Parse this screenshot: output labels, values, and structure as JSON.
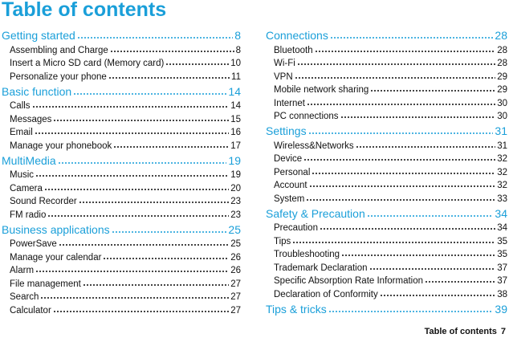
{
  "title": "Table of contents",
  "columns": [
    {
      "sections": [
        {
          "title": "Getting started",
          "page": 8,
          "entries": [
            {
              "label": "Assembling and Charge",
              "page": 8
            },
            {
              "label": "Insert a Micro SD card (Memory card)",
              "page": 10
            },
            {
              "label": "Personalize your phone",
              "page": 11
            }
          ]
        },
        {
          "title": "Basic function",
          "page": 14,
          "entries": [
            {
              "label": "Calls",
              "page": 14
            },
            {
              "label": "Messages",
              "page": 15
            },
            {
              "label": "Email",
              "page": 16
            },
            {
              "label": "Manage your phonebook",
              "page": 17
            }
          ]
        },
        {
          "title": "MultiMedia",
          "page": 19,
          "entries": [
            {
              "label": "Music",
              "page": 19
            },
            {
              "label": "Camera",
              "page": 20
            },
            {
              "label": "Sound Recorder",
              "page": 23
            },
            {
              "label": "FM radio",
              "page": 23
            }
          ]
        },
        {
          "title": "Business applications",
          "page": 25,
          "entries": [
            {
              "label": "PowerSave",
              "page": 25
            },
            {
              "label": "Manage your calendar",
              "page": 26
            },
            {
              "label": "Alarm",
              "page": 26
            },
            {
              "label": "File management",
              "page": 27
            },
            {
              "label": "Search",
              "page": 27
            },
            {
              "label": "Calculator",
              "page": 27
            }
          ]
        }
      ]
    },
    {
      "sections": [
        {
          "title": "Connections",
          "page": 28,
          "entries": [
            {
              "label": "Bluetooth",
              "page": 28
            },
            {
              "label": "Wi-Fi",
              "page": 28
            },
            {
              "label": "VPN",
              "page": 29
            },
            {
              "label": "Mobile network sharing",
              "page": 29
            },
            {
              "label": "Internet",
              "page": 30
            },
            {
              "label": "PC connections",
              "page": 30
            }
          ]
        },
        {
          "title": "Settings",
          "page": 31,
          "entries": [
            {
              "label": "Wireless&Networks",
              "page": 31
            },
            {
              "label": "Device",
              "page": 32
            },
            {
              "label": "Personal",
              "page": 32
            },
            {
              "label": "Account",
              "page": 32
            },
            {
              "label": "System",
              "page": 33
            }
          ]
        },
        {
          "title": "Safety & Precaution",
          "page": 34,
          "entries": [
            {
              "label": "Precaution",
              "page": 34
            },
            {
              "label": "Tips",
              "page": 35
            },
            {
              "label": "Troubleshooting",
              "page": 35
            },
            {
              "label": "Trademark Declaration",
              "page": 37
            },
            {
              "label": "Specific Absorption Rate Information",
              "page": 37
            },
            {
              "label": "Declaration of Conformity",
              "page": 38
            }
          ]
        },
        {
          "title": "Tips & tricks",
          "page": 39,
          "entries": []
        }
      ]
    }
  ],
  "footer": {
    "text": "Table of contents",
    "page": 7
  }
}
